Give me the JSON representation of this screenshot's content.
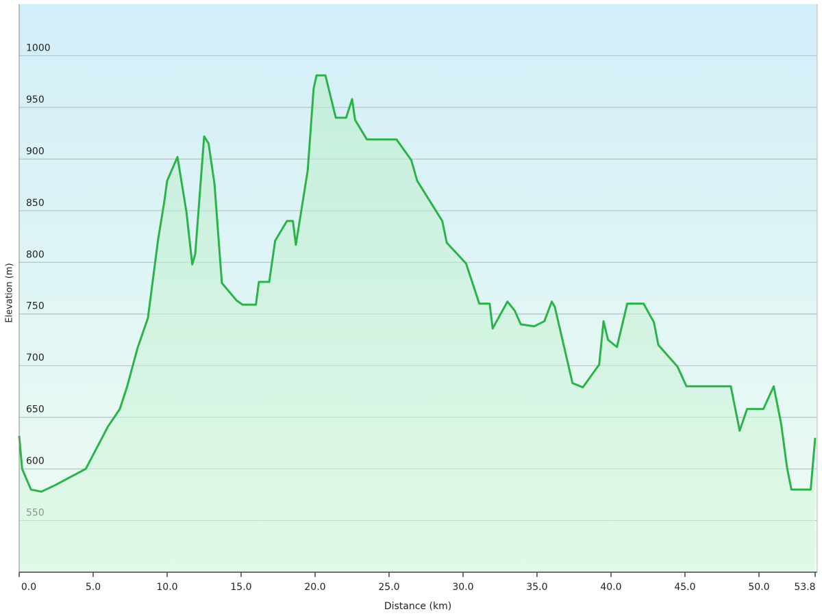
{
  "chart_data": {
    "type": "area-line",
    "x_label": "Distance  (km)",
    "y_label": "Elevation (m)",
    "color": "#2bb34a",
    "grid": true,
    "xlim": [
      0,
      53.8
    ],
    "ylim": [
      500,
      1050
    ],
    "xticks": [
      {
        "value": 0,
        "label": "0.0"
      },
      {
        "value": 5,
        "label": "5.0"
      },
      {
        "value": 10,
        "label": "10.0"
      },
      {
        "value": 15,
        "label": "15.0"
      },
      {
        "value": 20,
        "label": "20.0"
      },
      {
        "value": 25,
        "label": "25.0"
      },
      {
        "value": 30,
        "label": "30.0"
      },
      {
        "value": 35,
        "label": "35.0"
      },
      {
        "value": 40,
        "label": "40.0"
      },
      {
        "value": 45,
        "label": "45.0"
      },
      {
        "value": 50,
        "label": "50.0"
      },
      53.8
    ],
    "yticks": [
      550,
      600,
      650,
      700,
      750,
      800,
      850,
      900,
      950,
      1000
    ],
    "x": [
      0,
      0.2,
      0.8,
      1.5,
      2.4,
      4.5,
      6.0,
      6.8,
      7.3,
      8.0,
      8.7,
      9.4,
      9.8,
      10.0,
      10.7,
      11.3,
      11.7,
      11.9,
      12.5,
      12.8,
      13.2,
      13.7,
      14.7,
      15.1,
      16.0,
      16.2,
      16.9,
      17.3,
      18.1,
      18.5,
      18.7,
      19.5,
      19.9,
      20.1,
      20.7,
      21.4,
      22.1,
      22.5,
      22.7,
      23.5,
      25.5,
      26.5,
      26.9,
      28.6,
      28.9,
      30.2,
      31.1,
      31.8,
      32.0,
      33.0,
      33.5,
      33.9,
      34.8,
      35.5,
      36.0,
      36.2,
      37.4,
      38.1,
      39.2,
      39.5,
      39.8,
      40.4,
      41.1,
      42.2,
      42.9,
      43.2,
      44.5,
      45.1,
      48.1,
      48.7,
      49.2,
      50.3,
      51.0,
      51.5,
      51.9,
      52.2,
      53.5,
      53.8
    ],
    "values": [
      632,
      600,
      580,
      578,
      584,
      600,
      641,
      658,
      680,
      717,
      746,
      823,
      858,
      879,
      902,
      849,
      798,
      808,
      922,
      915,
      876,
      780,
      763,
      759,
      759,
      781,
      781,
      821,
      840,
      840,
      817,
      889,
      968,
      981,
      981,
      940,
      940,
      958,
      938,
      919,
      919,
      899,
      879,
      840,
      819,
      799,
      760,
      760,
      736,
      762,
      753,
      740,
      738,
      743,
      762,
      757,
      683,
      679,
      701,
      743,
      725,
      718,
      760,
      760,
      742,
      720,
      699,
      680,
      680,
      637,
      658,
      658,
      680,
      644,
      601,
      580,
      580,
      630
    ]
  }
}
